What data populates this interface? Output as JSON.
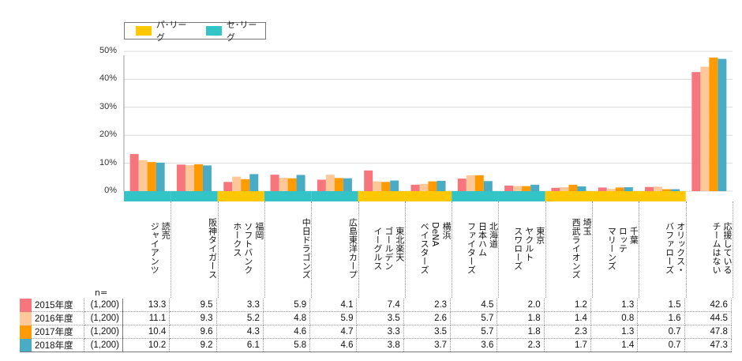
{
  "legend": [
    {
      "label": "パ･リーグ",
      "color": "#FFC800"
    },
    {
      "label": "セ･リーグ",
      "color": "#33C4C8"
    }
  ],
  "n_label": "n=",
  "chart_data": {
    "type": "bar",
    "ylim": [
      0,
      50
    ],
    "yticks": [
      "0%",
      "10%",
      "20%",
      "30%",
      "40%",
      "50%"
    ],
    "grid": true,
    "legend_position": "top-left",
    "categories": [
      "読売\nジャイアンツ",
      "阪神タイガース",
      "福岡\nソフトバンク\nホークス",
      "中日ドラゴンズ",
      "広島東洋カープ",
      "東北楽天\nゴールデン\nイーグルス",
      "横浜\nDeNA\nベイスターズ",
      "北海道\n日本ハム\nファイターズ",
      "東京\nヤクルト\nスワローズ",
      "埼玉\n西武ライオンズ",
      "千葉\nロッテ\nマリーンズ",
      "オリックス・\nバファローズ",
      "応援している\nチームはない"
    ],
    "league": [
      "se",
      "se",
      "pa",
      "se",
      "se",
      "pa",
      "pa",
      "se",
      "se",
      "pa",
      "pa",
      "pa",
      ""
    ],
    "series": [
      {
        "name": "2015年度",
        "n": "(1,200)",
        "color": "#F7767E",
        "values": [
          13.3,
          9.5,
          3.3,
          5.9,
          4.1,
          7.4,
          2.3,
          4.5,
          2.0,
          1.2,
          1.3,
          1.5,
          42.6
        ]
      },
      {
        "name": "2016年度",
        "n": "(1,200)",
        "color": "#FFC898",
        "values": [
          11.1,
          9.3,
          5.2,
          4.8,
          5.9,
          3.5,
          2.6,
          5.7,
          1.8,
          1.4,
          0.8,
          1.6,
          44.5
        ]
      },
      {
        "name": "2017年度",
        "n": "(1,200)",
        "color": "#FF9A00",
        "values": [
          10.4,
          9.6,
          4.3,
          4.6,
          4.7,
          3.3,
          3.5,
          5.7,
          1.8,
          2.3,
          1.3,
          0.7,
          47.8
        ]
      },
      {
        "name": "2018年度",
        "n": "(1,200)",
        "color": "#4AABC5",
        "values": [
          10.2,
          9.2,
          6.1,
          5.8,
          4.6,
          3.8,
          3.7,
          3.6,
          2.3,
          1.7,
          1.4,
          0.7,
          47.3
        ]
      }
    ]
  }
}
